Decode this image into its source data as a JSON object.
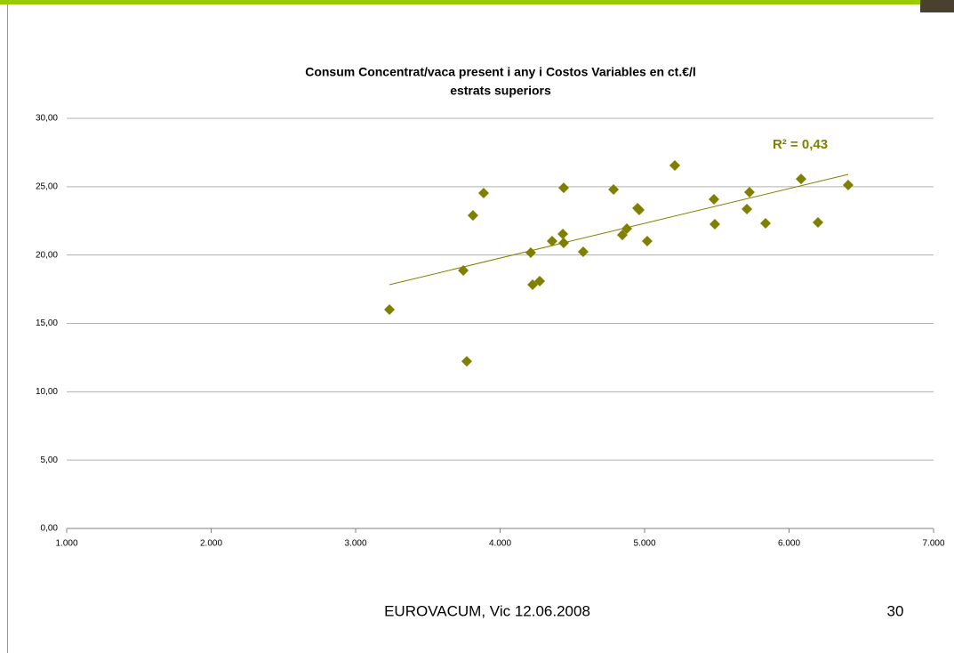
{
  "chart_data": {
    "type": "scatter",
    "title": [
      "Consum Concentrat/vaca present i any i Costos Variables en ct.€/l",
      "estrats superiors"
    ],
    "annotation": "R² = 0,43",
    "color": "#808000",
    "grid": true,
    "xlim": [
      1000,
      7000
    ],
    "xticks": [
      {
        "value": 1000,
        "label": "1.000"
      },
      {
        "value": 2000,
        "label": "2.000"
      },
      {
        "value": 3000,
        "label": "3.000"
      },
      {
        "value": 4000,
        "label": "4.000"
      },
      {
        "value": 5000,
        "label": "5.000"
      },
      {
        "value": 6000,
        "label": "6.000"
      },
      {
        "value": 7000,
        "label": "7.000"
      }
    ],
    "ylim": [
      0,
      30
    ],
    "yticks": [
      {
        "value": 0,
        "label": "0,00"
      },
      {
        "value": 5,
        "label": "5,00"
      },
      {
        "value": 10,
        "label": "10,00"
      },
      {
        "value": 15,
        "label": "15,00"
      },
      {
        "value": 20,
        "label": "20,00"
      },
      {
        "value": 25,
        "label": "25,00"
      },
      {
        "value": 30,
        "label": "30,00"
      }
    ],
    "x": [
      3234,
      3745,
      3769,
      3812,
      3886,
      4212,
      4225,
      4274,
      4360,
      4434,
      4440,
      4440,
      4575,
      4785,
      4846,
      4877,
      4951,
      4963,
      5018,
      5209,
      5480,
      5486,
      5708,
      5726,
      5837,
      6083,
      6200,
      6409
    ],
    "values": [
      16.01,
      18.87,
      12.23,
      22.9,
      24.53,
      20.17,
      17.83,
      18.09,
      21.02,
      21.54,
      20.89,
      24.92,
      20.24,
      24.79,
      21.47,
      21.93,
      23.43,
      23.3,
      21.02,
      26.55,
      24.08,
      22.26,
      23.36,
      24.6,
      22.32,
      25.57,
      22.39,
      25.12
    ],
    "trendline": {
      "x": [
        3234,
        6409
      ],
      "values": [
        17.83,
        25.9
      ]
    }
  },
  "footer": {
    "text": "EUROVACUM, Vic 12.06.2008",
    "page": "30"
  }
}
